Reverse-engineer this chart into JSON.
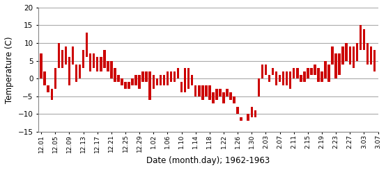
{
  "title": "",
  "xlabel": "Date (month.day); 1962-1963",
  "ylabel": "Temperature (C)",
  "ylim": [
    -15,
    20
  ],
  "yticks": [
    -15,
    -10,
    -5,
    0,
    5,
    10,
    15,
    20
  ],
  "bar_color": "#cc0000",
  "background_color": "#ffffff",
  "grid_color": "#aaaaaa",
  "xtick_labels": [
    "12.01",
    "12.05",
    "12.09",
    "12.13",
    "12.17",
    "12.21",
    "12.25",
    "12.29",
    "1.02",
    "1.06",
    "1.10",
    "1.14",
    "1.18",
    "1.22",
    "1.26",
    "1.30",
    "2.03",
    "2.07",
    "2.11",
    "2.15",
    "2.19",
    "2.23",
    "2.27",
    "3.03",
    "3.07"
  ],
  "xtick_positions": [
    1,
    5,
    9,
    13,
    17,
    21,
    25,
    29,
    33,
    37,
    41,
    45,
    49,
    53,
    57,
    61,
    65,
    69,
    73,
    77,
    81,
    85,
    89,
    93,
    97
  ],
  "tmax": [
    7,
    2,
    -2,
    -3,
    3,
    10,
    8,
    9,
    6,
    9,
    4,
    4,
    8,
    13,
    7,
    7,
    6,
    6,
    8,
    5,
    5,
    3,
    1,
    0,
    -1,
    -1,
    0,
    1,
    1,
    2,
    2,
    2,
    1,
    0,
    1,
    1,
    2,
    2,
    2,
    3,
    -1,
    3,
    3,
    1,
    -2,
    -2,
    -2,
    -2,
    -2,
    -4,
    -3,
    -3,
    -4,
    -3,
    -4,
    -5,
    -8,
    -11,
    -11,
    -10,
    -8,
    -9,
    0,
    4,
    4,
    1,
    3,
    2,
    1,
    2,
    2,
    2,
    3,
    3,
    1,
    2,
    3,
    3,
    4,
    3,
    2,
    5,
    4,
    9,
    7,
    7,
    9,
    10,
    9,
    9,
    10,
    15,
    14,
    10,
    9,
    8
  ],
  "tmin": [
    0,
    -2,
    -4,
    -6,
    -3,
    3,
    3,
    4,
    -2,
    4,
    -1,
    0,
    3,
    6,
    2,
    3,
    2,
    2,
    3,
    2,
    0,
    -1,
    -1,
    -2,
    -3,
    -3,
    -2,
    -2,
    -3,
    -1,
    -1,
    -6,
    -3,
    -2,
    -2,
    -2,
    -2,
    -1,
    -1,
    0,
    -4,
    -4,
    -3,
    -2,
    -5,
    -5,
    -6,
    -5,
    -6,
    -7,
    -6,
    -5,
    -7,
    -5,
    -6,
    -7,
    -10,
    -12,
    -11,
    -12,
    -11,
    -11,
    -5,
    0,
    1,
    -1,
    1,
    -2,
    -1,
    -2,
    -2,
    -3,
    0,
    0,
    -1,
    -1,
    0,
    1,
    1,
    -1,
    -1,
    0,
    -1,
    4,
    0,
    1,
    4,
    5,
    4,
    3,
    5,
    8,
    8,
    4,
    4,
    2
  ]
}
